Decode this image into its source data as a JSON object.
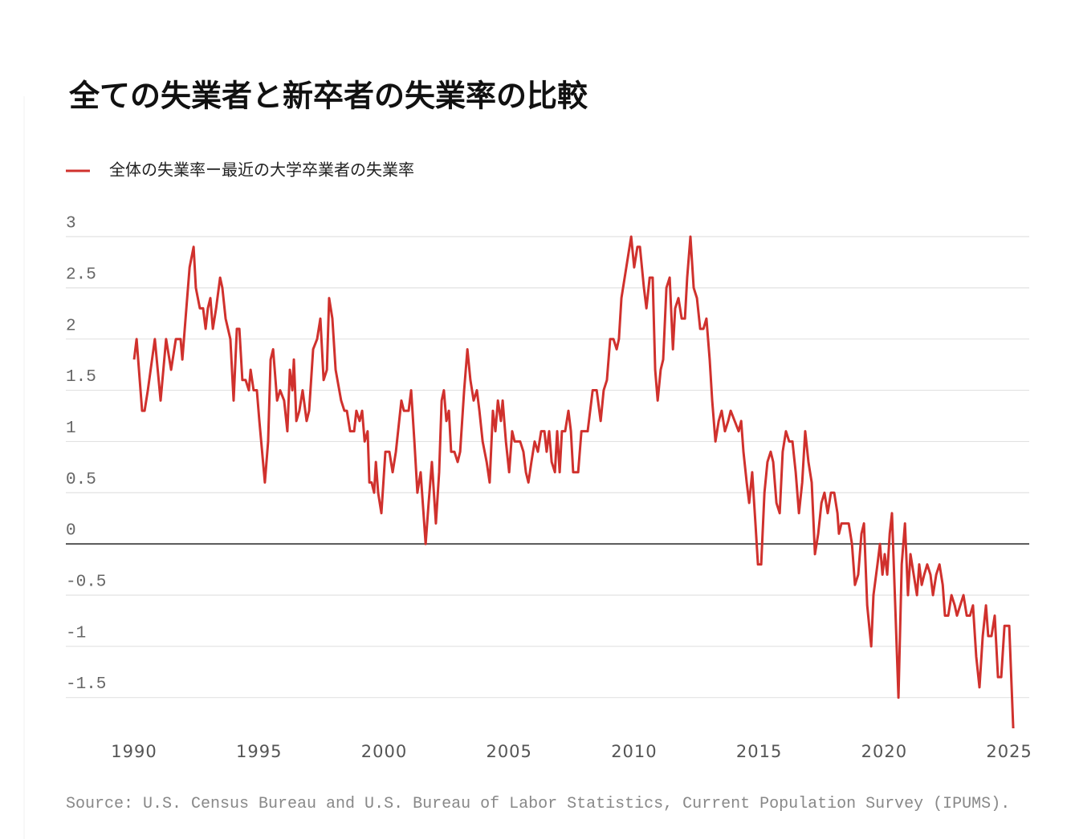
{
  "chart_data": {
    "type": "line",
    "title": "全ての失業者と新卒者の失業率の比較",
    "source": "Source: U.S. Census Bureau and U.S. Bureau of Labor Statistics, Current Population Survey (IPUMS).",
    "legend": "top-left",
    "grid": true,
    "xlim": [
      1987.27,
      2025.8
    ],
    "xticks": [
      1990,
      1995,
      2000,
      2005,
      2010,
      2015,
      2020,
      2025
    ],
    "ylim": [
      -1.8,
      3
    ],
    "yticks": [
      -1.5,
      -1,
      -0.5,
      0,
      0.5,
      1,
      1.5,
      2,
      2.5,
      3
    ],
    "x": [
      1990.0,
      1990.1,
      1990.32,
      1990.42,
      1990.55,
      1990.83,
      1991.06,
      1991.28,
      1991.48,
      1991.67,
      1991.86,
      1991.93,
      1992.09,
      1992.22,
      1992.38,
      1992.47,
      1992.63,
      1992.76,
      1992.86,
      1992.95,
      1993.05,
      1993.15,
      1993.28,
      1993.44,
      1993.53,
      1993.66,
      1993.85,
      1993.98,
      1994.11,
      1994.21,
      1994.33,
      1994.46,
      1994.59,
      1994.66,
      1994.78,
      1994.91,
      1995.01,
      1995.23,
      1995.36,
      1995.46,
      1995.56,
      1995.72,
      1995.84,
      1996.0,
      1996.13,
      1996.23,
      1996.33,
      1996.39,
      1996.49,
      1996.61,
      1996.74,
      1996.9,
      1997.0,
      1997.16,
      1997.32,
      1997.45,
      1997.58,
      1997.71,
      1997.8,
      1997.93,
      1998.06,
      1998.28,
      1998.41,
      1998.51,
      1998.64,
      1998.8,
      1998.89,
      1999.02,
      1999.12,
      1999.22,
      1999.34,
      1999.41,
      1999.5,
      1999.6,
      1999.67,
      1999.76,
      1999.89,
      2000.05,
      2000.21,
      2000.34,
      2000.47,
      2000.69,
      2000.79,
      2000.89,
      2000.98,
      2001.08,
      2001.21,
      2001.33,
      2001.46,
      2001.66,
      2001.78,
      2001.91,
      2002.07,
      2002.2,
      2002.3,
      2002.39,
      2002.49,
      2002.59,
      2002.68,
      2002.81,
      2002.94,
      2003.04,
      2003.2,
      2003.33,
      2003.45,
      2003.58,
      2003.71,
      2003.81,
      2003.94,
      2004.1,
      2004.22,
      2004.35,
      2004.45,
      2004.55,
      2004.67,
      2004.74,
      2004.87,
      2005.0,
      2005.12,
      2005.22,
      2005.44,
      2005.57,
      2005.67,
      2005.77,
      2005.89,
      2006.02,
      2006.15,
      2006.28,
      2006.41,
      2006.5,
      2006.6,
      2006.7,
      2006.83,
      2006.92,
      2007.02,
      2007.11,
      2007.24,
      2007.37,
      2007.47,
      2007.56,
      2007.76,
      2007.89,
      2007.98,
      2008.14,
      2008.34,
      2008.5,
      2008.66,
      2008.78,
      2008.91,
      2009.04,
      2009.17,
      2009.3,
      2009.39,
      2009.49,
      2009.62,
      2009.75,
      2009.88,
      2010.0,
      2010.13,
      2010.23,
      2010.39,
      2010.49,
      2010.62,
      2010.74,
      2010.84,
      2010.94,
      2011.06,
      2011.16,
      2011.29,
      2011.42,
      2011.55,
      2011.64,
      2011.77,
      2011.9,
      2012.03,
      2012.12,
      2012.25,
      2012.38,
      2012.51,
      2012.64,
      2012.77,
      2012.89,
      2013.02,
      2013.12,
      2013.25,
      2013.38,
      2013.5,
      2013.63,
      2013.76,
      2013.86,
      2014.02,
      2014.18,
      2014.28,
      2014.37,
      2014.5,
      2014.6,
      2014.72,
      2014.85,
      2014.95,
      2015.08,
      2015.21,
      2015.33,
      2015.46,
      2015.56,
      2015.69,
      2015.82,
      2015.94,
      2016.07,
      2016.2,
      2016.33,
      2016.46,
      2016.59,
      2016.72,
      2016.84,
      2016.97,
      2017.1,
      2017.23,
      2017.36,
      2017.49,
      2017.61,
      2017.74,
      2017.87,
      2018.0,
      2018.13,
      2018.19,
      2018.29,
      2018.58,
      2018.71,
      2018.83,
      2018.96,
      2019.09,
      2019.19,
      2019.32,
      2019.48,
      2019.57,
      2019.73,
      2019.83,
      2019.93,
      2020.02,
      2020.12,
      2020.22,
      2020.31,
      2020.44,
      2020.57,
      2020.7,
      2020.83,
      2020.95,
      2021.05,
      2021.18,
      2021.31,
      2021.4,
      2021.5,
      2021.6,
      2021.72,
      2021.85,
      2021.95,
      2022.08,
      2022.21,
      2022.34,
      2022.43,
      2022.56,
      2022.69,
      2022.82,
      2022.91,
      2023.04,
      2023.17,
      2023.3,
      2023.43,
      2023.55,
      2023.68,
      2023.81,
      2023.94,
      2024.07,
      2024.16,
      2024.29,
      2024.42,
      2024.55,
      2024.68,
      2024.81,
      2025.0,
      2025.16
    ],
    "series": [
      {
        "name": "全体の失業率ー最近の大学卒業者の失業率",
        "color": "#d0312d",
        "values": [
          1.8,
          2.0,
          1.3,
          1.3,
          1.5,
          2.0,
          1.4,
          2.0,
          1.7,
          2.0,
          2.0,
          1.8,
          2.3,
          2.7,
          2.9,
          2.5,
          2.3,
          2.3,
          2.1,
          2.3,
          2.4,
          2.1,
          2.3,
          2.6,
          2.5,
          2.2,
          2.0,
          1.4,
          2.1,
          2.1,
          1.6,
          1.6,
          1.5,
          1.7,
          1.5,
          1.5,
          1.2,
          0.6,
          1.0,
          1.8,
          1.9,
          1.4,
          1.5,
          1.4,
          1.1,
          1.7,
          1.5,
          1.8,
          1.2,
          1.3,
          1.5,
          1.2,
          1.3,
          1.9,
          2.0,
          2.2,
          1.6,
          1.7,
          2.4,
          2.2,
          1.7,
          1.4,
          1.3,
          1.3,
          1.1,
          1.1,
          1.3,
          1.2,
          1.3,
          1.0,
          1.1,
          0.6,
          0.6,
          0.5,
          0.8,
          0.5,
          0.3,
          0.9,
          0.9,
          0.7,
          0.9,
          1.4,
          1.3,
          1.3,
          1.3,
          1.5,
          1.0,
          0.5,
          0.7,
          0.0,
          0.4,
          0.8,
          0.2,
          0.7,
          1.4,
          1.5,
          1.2,
          1.3,
          0.9,
          0.9,
          0.8,
          0.9,
          1.5,
          1.9,
          1.6,
          1.4,
          1.5,
          1.3,
          1.0,
          0.8,
          0.6,
          1.3,
          1.1,
          1.4,
          1.2,
          1.4,
          1.0,
          0.7,
          1.1,
          1.0,
          1.0,
          0.9,
          0.7,
          0.6,
          0.8,
          1.0,
          0.9,
          1.1,
          1.1,
          0.9,
          1.1,
          0.8,
          0.7,
          1.1,
          0.7,
          1.1,
          1.1,
          1.3,
          1.1,
          0.7,
          0.7,
          1.1,
          1.1,
          1.1,
          1.5,
          1.5,
          1.2,
          1.5,
          1.6,
          2.0,
          2.0,
          1.9,
          2.0,
          2.4,
          2.6,
          2.8,
          3.0,
          2.7,
          2.9,
          2.9,
          2.5,
          2.3,
          2.6,
          2.6,
          1.7,
          1.4,
          1.7,
          1.8,
          2.5,
          2.6,
          1.9,
          2.3,
          2.4,
          2.2,
          2.2,
          2.6,
          3.0,
          2.5,
          2.4,
          2.1,
          2.1,
          2.2,
          1.8,
          1.4,
          1.0,
          1.2,
          1.3,
          1.1,
          1.2,
          1.3,
          1.2,
          1.1,
          1.2,
          0.9,
          0.6,
          0.4,
          0.7,
          0.2,
          -0.2,
          -0.2,
          0.5,
          0.8,
          0.9,
          0.8,
          0.4,
          0.3,
          0.9,
          1.1,
          1.0,
          1.0,
          0.7,
          0.3,
          0.6,
          1.1,
          0.8,
          0.6,
          -0.1,
          0.1,
          0.4,
          0.5,
          0.3,
          0.5,
          0.5,
          0.3,
          0.1,
          0.2,
          0.2,
          0.0,
          -0.4,
          -0.3,
          0.1,
          0.2,
          -0.6,
          -1.0,
          -0.5,
          -0.2,
          0.0,
          -0.3,
          -0.1,
          -0.3,
          0.1,
          0.3,
          -0.6,
          -1.5,
          -0.2,
          0.2,
          -0.5,
          -0.1,
          -0.3,
          -0.5,
          -0.2,
          -0.4,
          -0.3,
          -0.2,
          -0.3,
          -0.5,
          -0.3,
          -0.2,
          -0.4,
          -0.7,
          -0.7,
          -0.5,
          -0.6,
          -0.7,
          -0.6,
          -0.5,
          -0.7,
          -0.7,
          -0.6,
          -1.1,
          -1.4,
          -0.9,
          -0.6,
          -0.9,
          -0.9,
          -0.7,
          -1.3,
          -1.3,
          -0.8,
          -0.8,
          -1.8
        ]
      }
    ]
  }
}
